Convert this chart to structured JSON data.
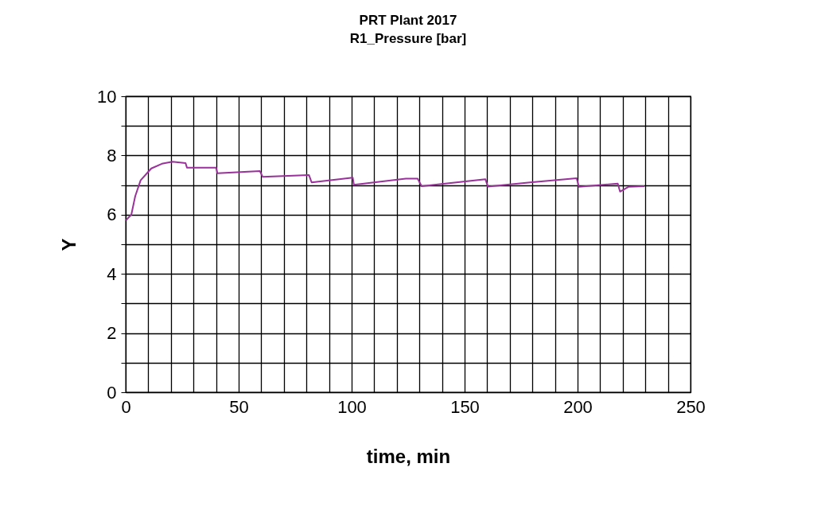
{
  "chart_data": {
    "type": "line",
    "title": "PRT Plant 2017",
    "subtitle": "R1_Pressure [bar]",
    "xlabel": "time, min",
    "ylabel": "Y",
    "series": [
      {
        "color": "#993399",
        "x": [
          0.1,
          2.5,
          4.2,
          6.6,
          11.3,
          16,
          20.7,
          26.5,
          27.1,
          40,
          40.6,
          59.4,
          60.6,
          81.1,
          82.3,
          100.5,
          101,
          124,
          129.2,
          131,
          159.2,
          160.3,
          179,
          199.6,
          200.6,
          217.8,
          218.8,
          222.5,
          229.6
        ],
        "values": [
          5.81,
          6.0,
          6.62,
          7.16,
          7.56,
          7.72,
          7.79,
          7.74,
          7.59,
          7.59,
          7.4,
          7.47,
          7.28,
          7.34,
          7.09,
          7.25,
          7.01,
          7.22,
          7.22,
          6.96,
          7.2,
          6.95,
          7.09,
          7.23,
          6.94,
          7.05,
          6.78,
          6.94,
          6.96
        ]
      }
    ],
    "xlim": [
      0,
      250
    ],
    "xticks": [
      0,
      {
        "value": 10,
        "label": null
      },
      {
        "value": 20,
        "label": null
      },
      {
        "value": 30,
        "label": null
      },
      {
        "value": 40,
        "label": null
      },
      50,
      {
        "value": 60,
        "label": null
      },
      {
        "value": 70,
        "label": null
      },
      {
        "value": 80,
        "label": null
      },
      {
        "value": 90,
        "label": null
      },
      100,
      {
        "value": 110,
        "label": null
      },
      {
        "value": 120,
        "label": null
      },
      {
        "value": 130,
        "label": null
      },
      {
        "value": 140,
        "label": null
      },
      150,
      {
        "value": 160,
        "label": null
      },
      {
        "value": 170,
        "label": null
      },
      {
        "value": 180,
        "label": null
      },
      {
        "value": 190,
        "label": null
      },
      200,
      {
        "value": 210,
        "label": null
      },
      {
        "value": 220,
        "label": null
      },
      {
        "value": 230,
        "label": null
      },
      {
        "value": 240,
        "label": null
      },
      250
    ],
    "ylim": [
      0,
      10
    ],
    "yticks": [
      0,
      {
        "value": 1,
        "label": null
      },
      2,
      {
        "value": 3,
        "label": null
      },
      4,
      {
        "value": 5,
        "label": null
      },
      6,
      {
        "value": 7,
        "label": null
      },
      8,
      {
        "value": 9,
        "label": null
      },
      10
    ],
    "grid": true
  }
}
